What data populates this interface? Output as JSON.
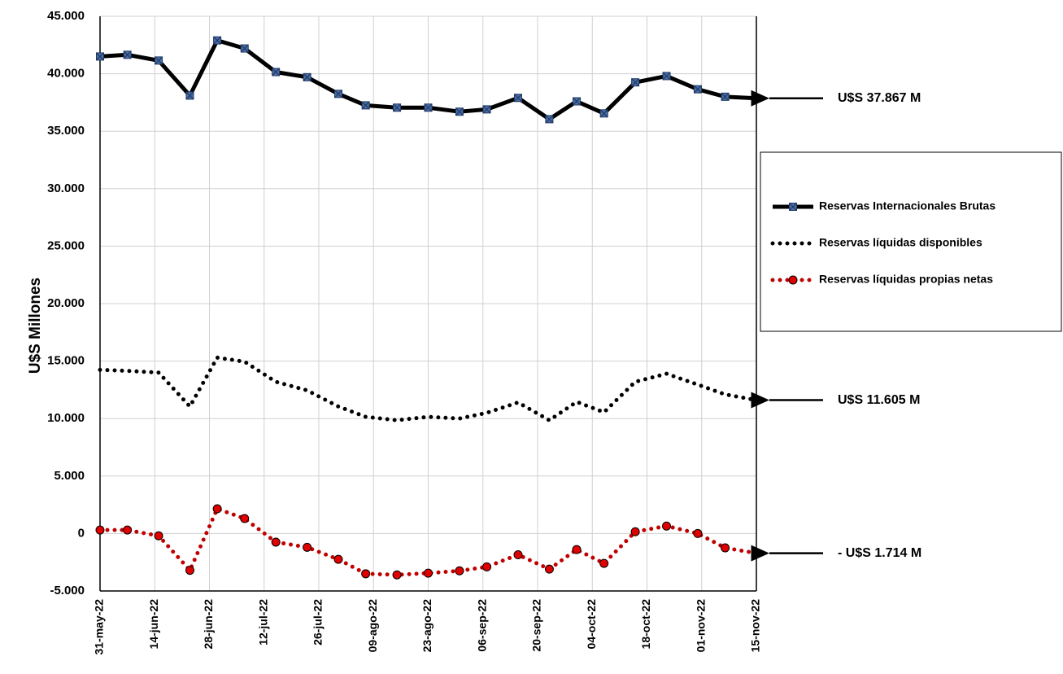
{
  "chart_data": {
    "type": "line",
    "y_label": "U$S Millones",
    "x": [
      "2022-05-31",
      "2022-06-07",
      "2022-06-15",
      "2022-06-23",
      "2022-06-30",
      "2022-07-07",
      "2022-07-15",
      "2022-07-23",
      "2022-07-31",
      "2022-08-07",
      "2022-08-15",
      "2022-08-23",
      "2022-08-31",
      "2022-09-07",
      "2022-09-15",
      "2022-09-23",
      "2022-09-30",
      "2022-10-07",
      "2022-10-15",
      "2022-10-23",
      "2022-10-31",
      "2022-11-07",
      "2022-11-15"
    ],
    "xlim": [
      "2022-05-31",
      "2022-11-15"
    ],
    "xticks": [
      {
        "value": "2022-05-31",
        "label": "31-may-22"
      },
      {
        "value": "2022-06-14",
        "label": "14-jun-22"
      },
      {
        "value": "2022-06-28",
        "label": "28-jun-22"
      },
      {
        "value": "2022-07-12",
        "label": "12-jul-22"
      },
      {
        "value": "2022-07-26",
        "label": "26-jul-22"
      },
      {
        "value": "2022-08-09",
        "label": "09-ago-22"
      },
      {
        "value": "2022-08-23",
        "label": "23-ago-22"
      },
      {
        "value": "2022-09-06",
        "label": "06-sep-22"
      },
      {
        "value": "2022-09-20",
        "label": "20-sep-22"
      },
      {
        "value": "2022-10-04",
        "label": "04-oct-22"
      },
      {
        "value": "2022-10-18",
        "label": "18-oct-22"
      },
      {
        "value": "2022-11-01",
        "label": "01-nov-22"
      },
      {
        "value": "2022-11-15",
        "label": "15-nov-22"
      }
    ],
    "ylim": [
      -5000,
      45000
    ],
    "yticks": [
      {
        "value": -5000,
        "label": "-5.000"
      },
      0,
      {
        "value": 5000,
        "label": "5.000"
      },
      {
        "value": 10000,
        "label": "10.000"
      },
      {
        "value": 15000,
        "label": "15.000"
      },
      {
        "value": 20000,
        "label": "20.000"
      },
      {
        "value": 25000,
        "label": "25.000"
      },
      {
        "value": 30000,
        "label": "30.000"
      },
      {
        "value": 35000,
        "label": "35.000"
      },
      {
        "value": 40000,
        "label": "40.000"
      },
      {
        "value": 45000,
        "label": "45.000"
      }
    ],
    "grid": true,
    "legend_position": "right",
    "series": [
      {
        "name": "Reservas Internacionales Brutas",
        "color": "#000000",
        "marker_color": "#4a6fa5",
        "style": "solid",
        "values": [
          41500,
          41650,
          41150,
          38100,
          42900,
          42200,
          40150,
          39700,
          38250,
          37250,
          37050,
          37050,
          36700,
          36900,
          37900,
          36050,
          37600,
          36550,
          39250,
          39800,
          38650,
          38000,
          37867
        ],
        "end_label": "U$S 37.867 M"
      },
      {
        "name": "Reservas líquidas disponibles",
        "color": "#000000",
        "style": "dotted",
        "values": [
          14240,
          14150,
          14000,
          11050,
          15300,
          14950,
          13200,
          12450,
          11050,
          10150,
          9850,
          10150,
          10000,
          10500,
          11400,
          9850,
          11450,
          10550,
          13200,
          13900,
          12950,
          12100,
          11605
        ],
        "end_label": "U$S 11.605 M"
      },
      {
        "name": "Reservas líquidas propias netas",
        "color": "#c00000",
        "marker_color": "#e00000",
        "style": "dotted-marker",
        "values": [
          300,
          300,
          -200,
          -3200,
          2150,
          1300,
          -750,
          -1200,
          -2250,
          -3500,
          -3600,
          -3450,
          -3250,
          -2900,
          -1850,
          -3100,
          -1400,
          -2600,
          150,
          650,
          0,
          -1250,
          -1714
        ],
        "end_label": "- U$S 1.714 M"
      }
    ]
  }
}
